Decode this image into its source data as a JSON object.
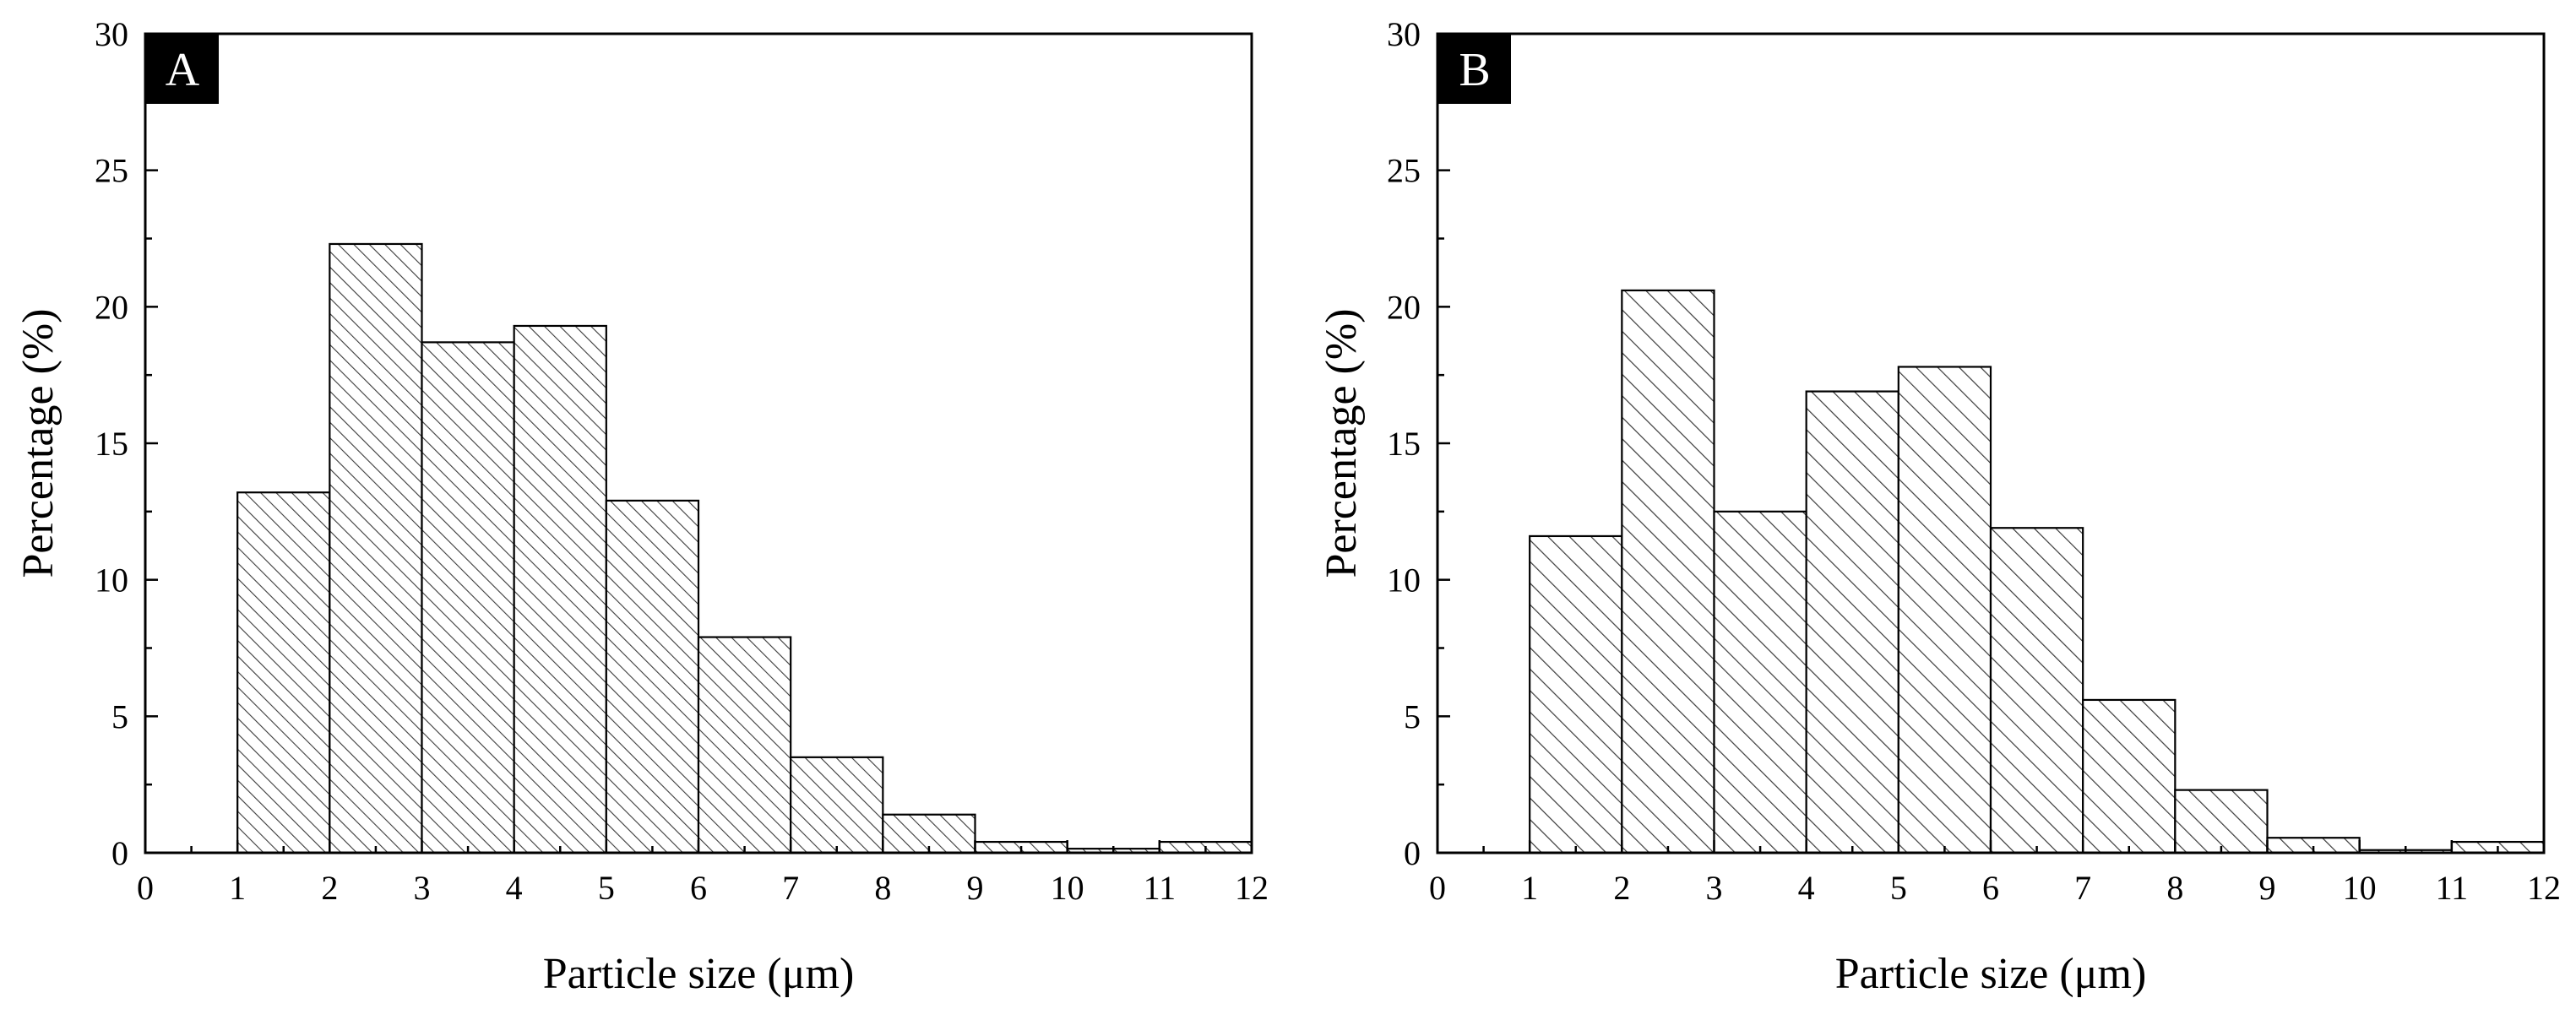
{
  "figure": {
    "colors": {
      "bar_fill": "#ffffff",
      "hatch": "#3a3a3a",
      "bar_edge": "#000000",
      "label_bg": "#000000",
      "label_text": "#ffffff"
    }
  },
  "chart_data": [
    {
      "type": "bar",
      "panel_label": "A",
      "title": "",
      "xlabel": "Particle size (μm)",
      "ylabel": "Percentage (%)",
      "xlim": [
        0,
        12
      ],
      "ylim": [
        0,
        30
      ],
      "xticks": [
        "0",
        "1",
        "2",
        "3",
        "4",
        "5",
        "6",
        "7",
        "8",
        "9",
        "10",
        "11",
        "12"
      ],
      "yticks": [
        "0",
        "5",
        "10",
        "15",
        "20",
        "25",
        "30"
      ],
      "bins": [
        [
          1,
          2
        ],
        [
          2,
          3
        ],
        [
          3,
          4
        ],
        [
          4,
          5
        ],
        [
          5,
          6
        ],
        [
          6,
          7
        ],
        [
          7,
          8
        ],
        [
          8,
          9
        ],
        [
          9,
          10
        ],
        [
          10,
          11
        ],
        [
          11,
          12
        ]
      ],
      "values": [
        13.2,
        22.3,
        18.7,
        19.3,
        12.9,
        7.9,
        3.5,
        1.4,
        0.4,
        0.15,
        0.4
      ],
      "hatch": "dense"
    },
    {
      "type": "bar",
      "panel_label": "B",
      "title": "",
      "xlabel": "Particle size (μm)",
      "ylabel": "Percentage (%)",
      "xlim": [
        0,
        12
      ],
      "ylim": [
        0,
        30
      ],
      "xticks": [
        "0",
        "1",
        "2",
        "3",
        "4",
        "5",
        "6",
        "7",
        "8",
        "9",
        "10",
        "11",
        "12"
      ],
      "yticks": [
        "0",
        "5",
        "10",
        "15",
        "20",
        "25",
        "30"
      ],
      "bins": [
        [
          1,
          2
        ],
        [
          2,
          3
        ],
        [
          3,
          4
        ],
        [
          4,
          5
        ],
        [
          5,
          6
        ],
        [
          6,
          7
        ],
        [
          7,
          8
        ],
        [
          8,
          9
        ],
        [
          9,
          10
        ],
        [
          10,
          11
        ],
        [
          11,
          12
        ]
      ],
      "values": [
        11.6,
        20.6,
        12.5,
        16.9,
        17.8,
        11.9,
        5.6,
        2.3,
        0.55,
        0.1,
        0.4
      ],
      "hatch": "sparse"
    }
  ]
}
